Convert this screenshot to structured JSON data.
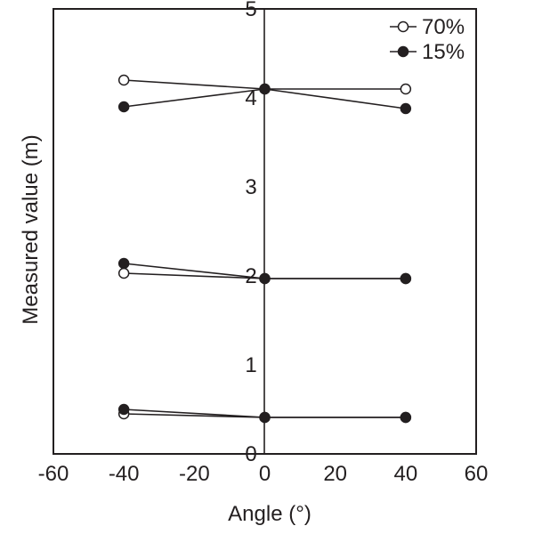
{
  "chart_data": {
    "type": "scatter",
    "xlabel": "Angle (°)",
    "ylabel": "Measured value (m)",
    "xlim": [
      -60,
      60
    ],
    "ylim": [
      0,
      5
    ],
    "x_ticks": [
      -60,
      -40,
      -20,
      0,
      20,
      40,
      60
    ],
    "y_ticks": [
      0,
      1,
      2,
      3,
      4,
      5
    ],
    "grid": false,
    "legend_position": "top-right",
    "series": [
      {
        "name": "70%",
        "marker": "open-circle",
        "color": "#231f20",
        "groups": [
          {
            "points": [
              {
                "x": -40,
                "y": 0.45
              },
              {
                "x": 0,
                "y": 0.41
              },
              {
                "x": 40,
                "y": 0.41
              }
            ]
          },
          {
            "points": [
              {
                "x": -40,
                "y": 2.03
              },
              {
                "x": 0,
                "y": 1.97
              },
              {
                "x": 40,
                "y": 1.97
              }
            ]
          },
          {
            "points": [
              {
                "x": -40,
                "y": 4.2
              },
              {
                "x": 0,
                "y": 4.1
              },
              {
                "x": 40,
                "y": 4.1
              }
            ]
          }
        ]
      },
      {
        "name": "15%",
        "marker": "filled-circle",
        "color": "#231f20",
        "groups": [
          {
            "points": [
              {
                "x": -40,
                "y": 0.5
              },
              {
                "x": 0,
                "y": 0.41
              },
              {
                "x": 40,
                "y": 0.41
              }
            ]
          },
          {
            "points": [
              {
                "x": -40,
                "y": 2.14
              },
              {
                "x": 0,
                "y": 1.97
              },
              {
                "x": 40,
                "y": 1.97
              }
            ]
          },
          {
            "points": [
              {
                "x": -40,
                "y": 3.9
              },
              {
                "x": 0,
                "y": 4.1
              },
              {
                "x": 40,
                "y": 3.88
              }
            ]
          }
        ]
      }
    ]
  }
}
